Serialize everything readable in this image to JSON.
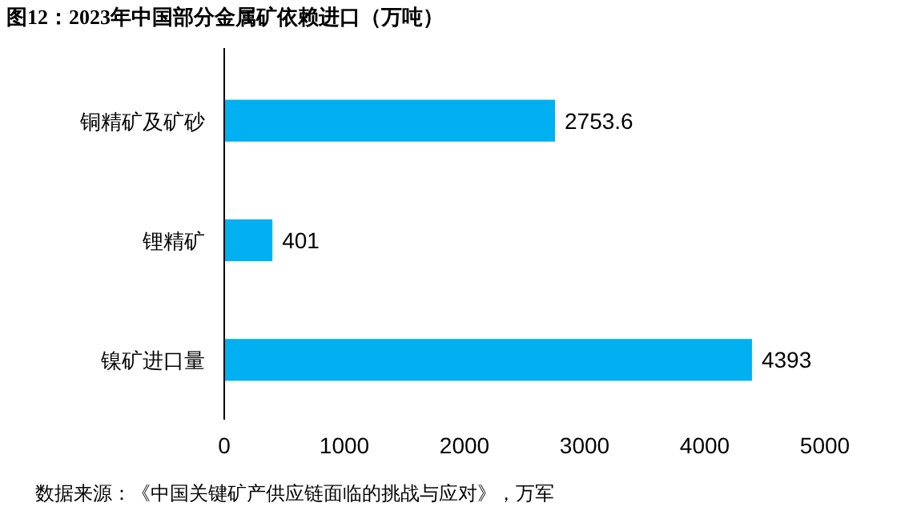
{
  "chart_data": {
    "type": "bar",
    "orientation": "horizontal",
    "title": "图12：2023年中国部分金属矿依赖进口（万吨）",
    "categories": [
      "铜精矿及矿砂",
      "锂精矿",
      "镍矿进口量"
    ],
    "values": [
      2753.6,
      401,
      4393
    ],
    "color": "#00b0f0",
    "xlim": [
      0,
      5000
    ],
    "xticks": [
      0,
      1000,
      2000,
      3000,
      4000,
      5000
    ],
    "data_labels": true,
    "grid": false,
    "annotations": [
      "数据来源：《中国关键矿产供应链面临的挑战与应对》，万军"
    ]
  }
}
